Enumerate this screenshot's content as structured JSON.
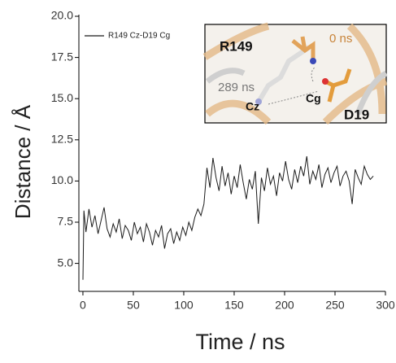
{
  "chart_data": {
    "type": "line",
    "xlabel": "Time / ns",
    "ylabel": "Distance / Å",
    "xlim": [
      -4,
      300
    ],
    "xticks": [
      0,
      50,
      100,
      150,
      200,
      250,
      300
    ],
    "ylim": [
      3.3,
      20
    ],
    "yticks": [
      {
        "value": 5,
        "label": "5.0"
      },
      {
        "value": 7.5,
        "label": "7.5"
      },
      {
        "value": 10,
        "label": "10.0"
      },
      {
        "value": 12.5,
        "label": "12.5"
      },
      {
        "value": 15,
        "label": "15.0"
      },
      {
        "value": 17.5,
        "label": "17.5"
      },
      {
        "value": 20,
        "label": "20.0"
      }
    ],
    "legend": "upper left",
    "x": [
      0,
      1,
      3,
      6,
      9,
      12,
      15,
      18,
      21,
      24,
      27,
      30,
      33,
      36,
      39,
      42,
      45,
      48,
      51,
      54,
      57,
      60,
      63,
      66,
      69,
      72,
      75,
      78,
      81,
      84,
      87,
      90,
      93,
      96,
      99,
      102,
      105,
      108,
      111,
      114,
      117,
      120,
      123,
      126,
      129,
      132,
      135,
      138,
      141,
      144,
      147,
      150,
      153,
      156,
      159,
      162,
      165,
      168,
      171,
      174,
      177,
      180,
      183,
      186,
      189,
      192,
      195,
      198,
      201,
      204,
      207,
      210,
      213,
      216,
      219,
      222,
      225,
      228,
      231,
      234,
      237,
      240,
      243,
      246,
      249,
      252,
      255,
      258,
      261,
      264,
      267,
      270,
      273,
      276,
      279,
      282,
      285,
      288
    ],
    "series": [
      {
        "name": "R149 Cz-D19 Cg",
        "color": "#1a1a1a",
        "values": [
          4.0,
          8.2,
          6.9,
          8.3,
          7.2,
          7.9,
          6.8,
          7.6,
          8.4,
          7.1,
          6.6,
          7.4,
          6.9,
          7.7,
          6.5,
          7.3,
          7.0,
          6.4,
          7.5,
          6.8,
          7.2,
          6.3,
          7.4,
          6.9,
          6.1,
          7.0,
          6.6,
          7.3,
          5.9,
          6.8,
          7.1,
          6.2,
          6.9,
          6.4,
          7.2,
          6.7,
          7.5,
          7.0,
          7.8,
          8.3,
          7.9,
          8.6,
          10.8,
          9.6,
          11.4,
          10.2,
          9.4,
          10.9,
          9.7,
          10.5,
          9.2,
          10.3,
          9.6,
          11.0,
          9.9,
          8.9,
          10.1,
          9.5,
          10.6,
          7.4,
          10.2,
          9.4,
          10.8,
          9.8,
          10.3,
          9.1,
          10.5,
          10.0,
          11.2,
          10.1,
          9.5,
          10.7,
          9.9,
          10.9,
          10.3,
          11.5,
          9.8,
          10.6,
          10.1,
          11.0,
          9.6,
          10.4,
          10.8,
          9.9,
          10.5,
          10.9,
          9.7,
          10.3,
          10.6,
          10.0,
          8.6,
          10.7,
          10.2,
          9.8,
          10.9,
          10.4,
          10.1,
          10.3
        ]
      }
    ],
    "annotations": [
      {
        "text": "R149"
      },
      {
        "text": "0 ns"
      },
      {
        "text": "289 ns"
      },
      {
        "text": "Cz"
      },
      {
        "text": "Cg"
      },
      {
        "text": "D19"
      }
    ]
  }
}
